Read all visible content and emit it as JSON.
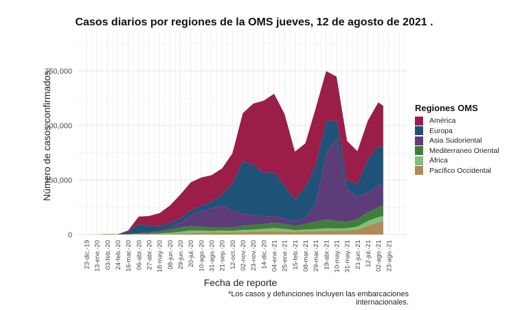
{
  "chart_data": {
    "type": "area",
    "stacked": true,
    "title": "Casos diarios por regiones de la OMS jueves, 12 de agosto de 2021 .",
    "xlabel": "Fecha de reporte",
    "ylabel": "Número de casos confirmados",
    "footnote": "*Los casos y defunciones incluyen las embarcaciones internacionales.",
    "legend_title": "Regiones OMS",
    "legend_position": "right",
    "grid": true,
    "ylim": [
      0,
      930000
    ],
    "yticks": [
      0,
      250000,
      500000,
      750000
    ],
    "ytick_labels": [
      "0",
      "250,000",
      "500,000",
      "750,000"
    ],
    "xtick_labels": [
      "23-dic.-19",
      "13-ene.-20",
      "03-feb.-20",
      "24-feb.-20",
      "16-mar.-20",
      "06-abr.-20",
      "27-abr.-20",
      "18-may.-20",
      "08-jun.-20",
      "29-jun.-20",
      "20-jul.-20",
      "10-ago.-20",
      "31-ago.-20",
      "21-sep.-20",
      "12-oct.-20",
      "02-nov.-20",
      "23-nov.-20",
      "14-dic.-20",
      "04-ene.-21",
      "25-ene.-21",
      "15-feb.-21",
      "08-mar.-21",
      "29-mar.-21",
      "19-abr.-21",
      "10-may.-21",
      "31-may.-21",
      "21-jun.-21",
      "12-jul.-21",
      "02-ago.-21",
      "23-ago.-21"
    ],
    "x": [
      "23-dic.-19",
      "13-ene.-20",
      "03-feb.-20",
      "24-feb.-20",
      "16-mar.-20",
      "06-abr.-20",
      "27-abr.-20",
      "18-may.-20",
      "08-jun.-20",
      "29-jun.-20",
      "20-jul.-20",
      "10-ago.-20",
      "31-ago.-20",
      "21-sep.-20",
      "12-oct.-20",
      "02-nov.-20",
      "23-nov.-20",
      "14-dic.-20",
      "04-ene.-21",
      "25-ene.-21",
      "15-feb.-21",
      "08-mar.-21",
      "29-mar.-21",
      "19-abr.-21",
      "10-may.-21",
      "31-may.-21",
      "21-jun.-21",
      "12-jul.-21",
      "02-ago.-21",
      "12-ago.-21"
    ],
    "series": [
      {
        "name": "Pacífico Occidental",
        "color": "#b08a55",
        "values": [
          0,
          500,
          3000,
          1000,
          1000,
          2000,
          2000,
          3000,
          4000,
          5000,
          7000,
          8000,
          9000,
          10000,
          10000,
          12000,
          13000,
          14000,
          15000,
          14000,
          12000,
          14000,
          15000,
          17000,
          18000,
          19000,
          22000,
          40000,
          55000,
          60000
        ]
      },
      {
        "name": "África",
        "color": "#7fc07a",
        "values": [
          0,
          0,
          0,
          0,
          0,
          1000,
          1000,
          2000,
          4000,
          8000,
          12000,
          10000,
          8000,
          8000,
          7000,
          9000,
          10000,
          12000,
          15000,
          12000,
          8000,
          9000,
          10000,
          12000,
          10000,
          10000,
          15000,
          22000,
          25000,
          25000
        ]
      },
      {
        "name": "Mediterraneo Oriental",
        "color": "#3f7f3a",
        "values": [
          0,
          0,
          0,
          500,
          1000,
          3000,
          5000,
          8000,
          15000,
          20000,
          20000,
          18000,
          15000,
          15000,
          15000,
          20000,
          22000,
          22000,
          25000,
          22000,
          20000,
          25000,
          35000,
          40000,
          35000,
          30000,
          35000,
          40000,
          45000,
          50000
        ]
      },
      {
        "name": "Asia Sudoriental",
        "color": "#5e3c7a",
        "values": [
          0,
          0,
          0,
          0,
          0,
          1000,
          2000,
          5000,
          10000,
          20000,
          50000,
          70000,
          90000,
          100000,
          80000,
          55000,
          45000,
          35000,
          30000,
          25000,
          20000,
          30000,
          80000,
          300000,
          380000,
          150000,
          100000,
          90000,
          100000,
          95000
        ]
      },
      {
        "name": "Europa",
        "color": "#1f5278",
        "values": [
          0,
          0,
          0,
          500,
          12000,
          40000,
          30000,
          20000,
          20000,
          20000,
          20000,
          25000,
          30000,
          50000,
          120000,
          240000,
          230000,
          200000,
          200000,
          150000,
          100000,
          140000,
          180000,
          150000,
          80000,
          40000,
          60000,
          150000,
          180000,
          170000
        ]
      },
      {
        "name": "América",
        "color": "#9b1e48",
        "values": [
          0,
          0,
          0,
          0,
          5000,
          35000,
          45000,
          60000,
          80000,
          110000,
          130000,
          130000,
          120000,
          120000,
          140000,
          220000,
          280000,
          330000,
          360000,
          330000,
          220000,
          200000,
          260000,
          230000,
          200000,
          180000,
          150000,
          180000,
          200000,
          190000
        ]
      }
    ]
  }
}
